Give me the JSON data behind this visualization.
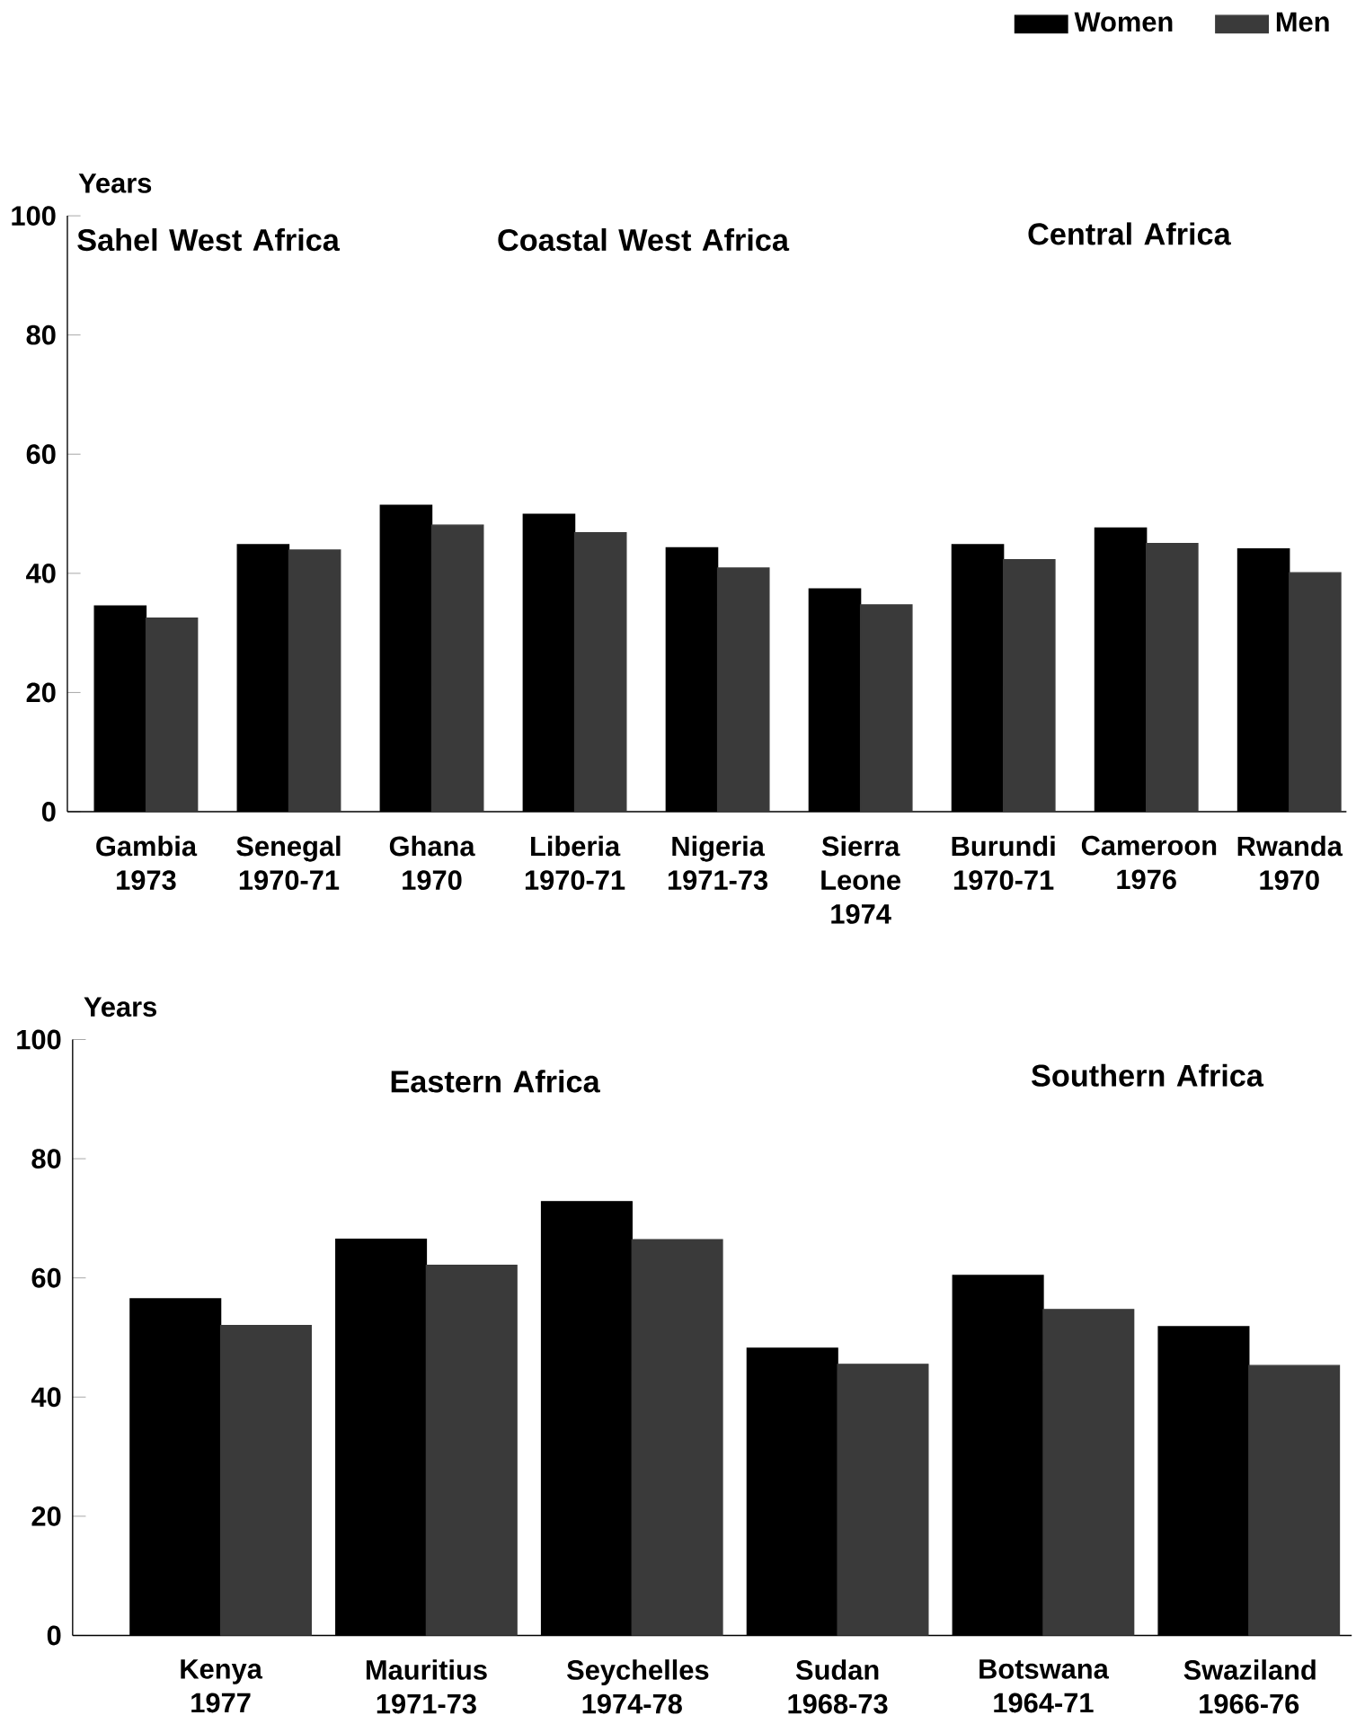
{
  "chart_data": [
    {
      "type": "bar",
      "ylabel": "Years",
      "categories": [
        "Gambia 1973",
        "Senegal 1970-71",
        "Ghana 1970",
        "Liberia 1970-71",
        "Nigeria 1971-73",
        "Sierra Leone 1974",
        "Burundi 1970-71",
        "Cameroon 1976",
        "Rwanda 1970"
      ],
      "series": [
        {
          "name": "Women",
          "color": "#000000",
          "values": [
            34.5,
            44.8,
            51.4,
            49.9,
            44.3,
            37.4,
            44.8,
            47.6,
            44.1
          ]
        },
        {
          "name": "Men",
          "color": "#3a3a3a",
          "values": [
            32.5,
            43.9,
            48.1,
            46.8,
            40.9,
            34.7,
            42.3,
            45.0,
            40.1
          ]
        }
      ],
      "ylim": [
        0,
        100
      ],
      "yticks": [
        0,
        20,
        40,
        60,
        80,
        100
      ],
      "grid": false,
      "legend": "top right",
      "annotations": [
        "Sahel West Africa",
        "Coastal West Africa",
        "Central Africa"
      ]
    },
    {
      "type": "bar",
      "ylabel": "Years",
      "categories": [
        "Kenya 1977",
        "Mauritius 1971-73",
        "Seychelles 1974-78",
        "Sudan 1968-73",
        "Botswana 1964-71",
        "Swaziland 1966-76"
      ],
      "series": [
        {
          "color": "#000000",
          "values": [
            56.5,
            66.5,
            72.8,
            48.2,
            60.4,
            51.8
          ]
        },
        {
          "color": "#3a3a3a",
          "values": [
            52.0,
            62.1,
            66.4,
            45.5,
            54.7,
            45.3
          ]
        }
      ],
      "ylim": [
        0,
        100
      ],
      "yticks": [
        0,
        20,
        40,
        60,
        80,
        100
      ],
      "grid": false,
      "annotations": [
        "Eastern Africa",
        "Southern Africa"
      ]
    }
  ]
}
